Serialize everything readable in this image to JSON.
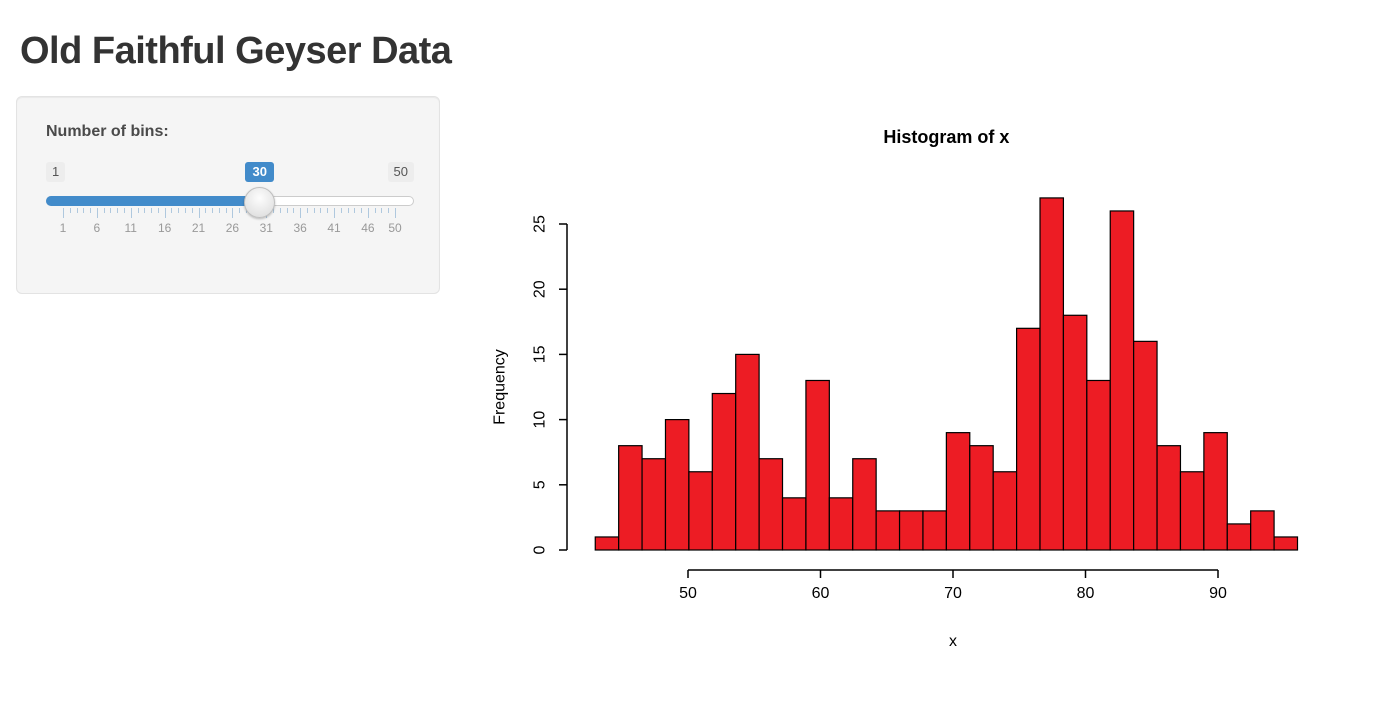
{
  "page": {
    "title": "Old Faithful Geyser Data"
  },
  "sidebar": {
    "label": "Number of bins:",
    "slider": {
      "min": 1,
      "max": 50,
      "value": 30,
      "min_label": "1",
      "max_label": "50",
      "value_label": "30",
      "grid_labels": [
        "1",
        "6",
        "11",
        "16",
        "21",
        "26",
        "31",
        "36",
        "41",
        "46",
        "50"
      ],
      "accent_color": "#428bca"
    }
  },
  "chart_data": {
    "type": "bar",
    "title": "Histogram of x",
    "xlabel": "x",
    "ylabel": "Frequency",
    "bin_start": 43,
    "bin_end": 96,
    "bins": 30,
    "counts": [
      1,
      8,
      7,
      10,
      6,
      12,
      15,
      7,
      4,
      13,
      4,
      7,
      3,
      3,
      3,
      9,
      8,
      6,
      17,
      27,
      18,
      13,
      26,
      16,
      8,
      6,
      9,
      2,
      3,
      1
    ],
    "x_ticks": [
      50,
      60,
      70,
      80,
      90
    ],
    "y_ticks": [
      0,
      5,
      10,
      15,
      20,
      25
    ],
    "ylim": [
      0,
      27
    ],
    "grid": false,
    "legend": "none",
    "bar_color": "#ed1c24",
    "bar_border": "#000000"
  },
  "colors": {
    "accent_blue": "#428bca",
    "panel_bg": "#f5f5f5",
    "panel_border": "#e3e3e3",
    "heading_text": "#333333",
    "grid_label_grey": "#999999"
  }
}
